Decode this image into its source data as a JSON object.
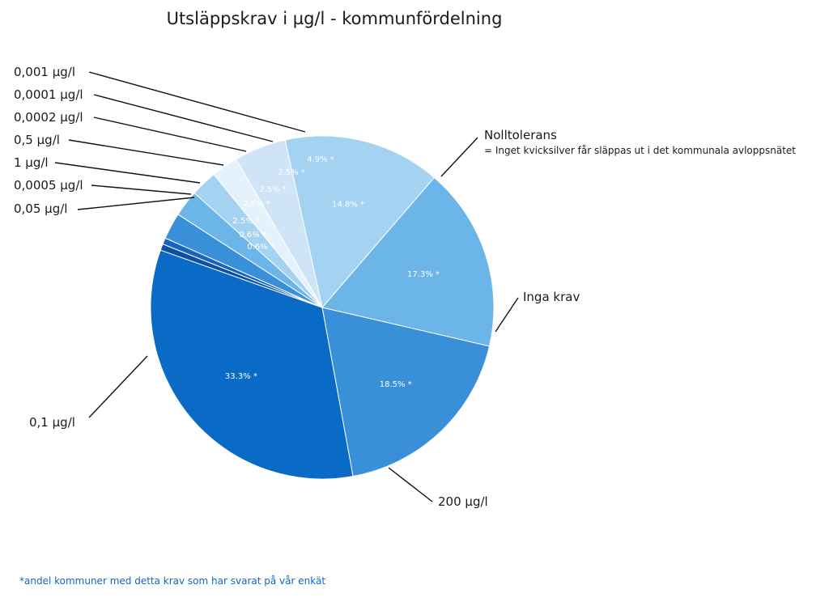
{
  "chart_data": {
    "type": "pie",
    "title": "Utsläppskrav i µg/l - kommunfördelning",
    "value_suffix": "% *",
    "slices": [
      {
        "label": "Nolltolerans",
        "sublabel": "= Inget kvicksilver får släppas ut i det kommunala avloppsnätet",
        "value": 14.8,
        "value_text": "14.8% *",
        "color": "#a3d3f0"
      },
      {
        "label": "Inga krav",
        "value": 17.3,
        "value_text": "17.3% *",
        "color": "#6cb5e8"
      },
      {
        "label": "200 µg/l",
        "value": 18.5,
        "value_text": "18.5% *",
        "color": "#3a8fd9"
      },
      {
        "label": "0,1 µg/l",
        "value": 33.3,
        "value_text": "33.3% *",
        "color": "#0a6bc7"
      },
      {
        "label": "0,05 µg/l",
        "value": 0.6,
        "value_text": "0.6% *",
        "color": "#0d4fa3"
      },
      {
        "label": "0,0005 µg/l",
        "value": 0.6,
        "value_text": "0.6% *",
        "color": "#1565c0"
      },
      {
        "label": "1 µg/l",
        "value": 2.5,
        "value_text": "2.5% *",
        "color": "#3a8fd9"
      },
      {
        "label": "0,5 µg/l",
        "value": 2.5,
        "value_text": "2.5% *",
        "color": "#6cb5e8"
      },
      {
        "label": "0,0002 µg/l",
        "value": 2.5,
        "value_text": "2.5% *",
        "color": "#a3d3f0"
      },
      {
        "label": "0,0001 µg/l",
        "value": 2.5,
        "value_text": "2.5% *",
        "color": "#e6f2fb"
      },
      {
        "label": "0,001 µg/l",
        "value": 4.9,
        "value_text": "4.9% *",
        "color": "#cfe5f7"
      }
    ]
  },
  "footnote": "*andel kommuner med detta krav som har svarat på vår enkät"
}
